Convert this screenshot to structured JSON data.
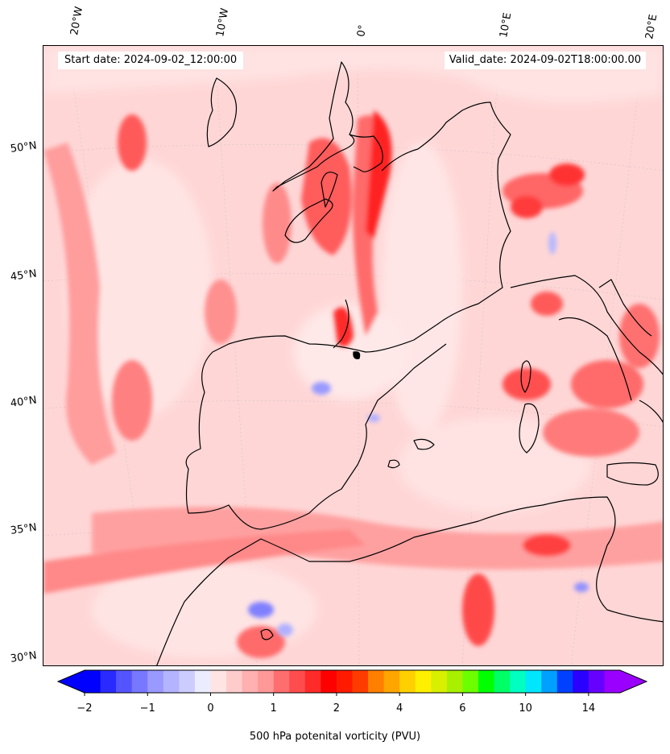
{
  "annotations": {
    "start_date": "Start date: 2024-09-02_12:00:00",
    "valid_date": "Valid_date: 2024-09-02T18:00:00.00"
  },
  "map": {
    "type": "filled-contour",
    "projection": "Lambert conformal",
    "region": "Western Europe, Iberia, Western Mediterranean, North-West Africa",
    "gridlines": true,
    "background_level_color": "#ffd6d6",
    "coastline_color": "#000000"
  },
  "lon_ticks": [
    "20°W",
    "10°W",
    "0°",
    "10°E",
    "20°E"
  ],
  "lat_ticks": [
    "50°N",
    "45°N",
    "40°N",
    "35°N",
    "30°N"
  ],
  "colorbar": {
    "label": "500 hPa potenital vorticity (PVU)",
    "extend": "both",
    "tick_labels": [
      "−2",
      "−1",
      "0",
      "1",
      "2",
      "4",
      "6",
      "10",
      "14"
    ],
    "colors": [
      "#0000ff",
      "#2a2aff",
      "#5555ff",
      "#7777ff",
      "#9999ff",
      "#b3b3ff",
      "#ccccff",
      "#ececff",
      "#ffe4e4",
      "#ffcccc",
      "#ffb0b0",
      "#ff9999",
      "#ff6e6e",
      "#ff4d4d",
      "#ff2a2a",
      "#ff0000",
      "#ff1a00",
      "#ff3c00",
      "#ff7f00",
      "#ffa500",
      "#ffd000",
      "#fff000",
      "#d8f000",
      "#a8f000",
      "#6cff00",
      "#00ff00",
      "#00ff66",
      "#00ffc0",
      "#00e6ff",
      "#00a0ff",
      "#0040ff",
      "#2a00ff",
      "#6600ff",
      "#9900ff"
    ]
  }
}
